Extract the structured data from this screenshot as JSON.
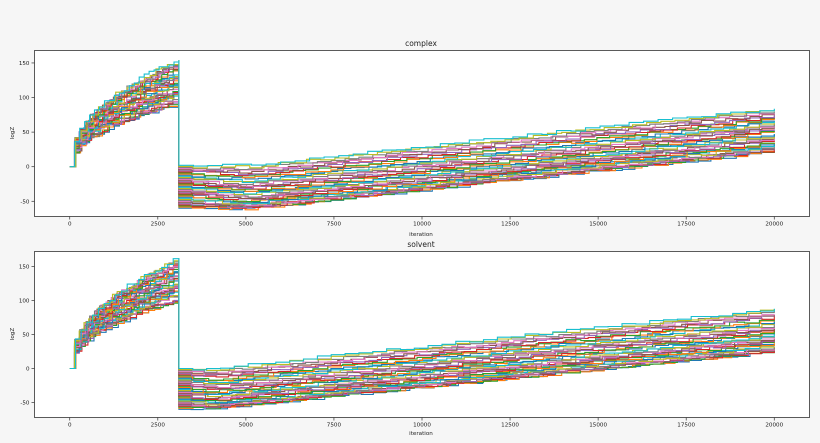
{
  "figure": {
    "background": "#f6f6f6",
    "plot_background": "#ffffff"
  },
  "chart_data": [
    {
      "type": "line",
      "title": "complex",
      "xlabel": "iteration",
      "ylabel": "logZ",
      "xlim": [
        -1000,
        21000
      ],
      "ylim": [
        -72,
        168
      ],
      "xticks": [
        0,
        2500,
        5000,
        7500,
        10000,
        12500,
        15000,
        17500,
        20000
      ],
      "yticks": [
        -50,
        0,
        50,
        100,
        150
      ],
      "grid": false,
      "legend": "none",
      "series_count": 40,
      "step_like": true,
      "phase1": {
        "x_end": 3100,
        "final_range": [
          88,
          155
        ]
      },
      "drop": {
        "x": 3100,
        "range": [
          -60,
          2
        ],
        "min_x": 5000,
        "min_value": -62
      },
      "end": {
        "x": 20000,
        "range": [
          22,
          85
        ]
      },
      "palette": [
        "#1f77b4",
        "#ff7f0e",
        "#2ca02c",
        "#d62728",
        "#9467bd",
        "#8c564b",
        "#e377c2",
        "#7f7f7f",
        "#bcbd22",
        "#17becf"
      ]
    },
    {
      "type": "line",
      "title": "solvent",
      "xlabel": "iteration",
      "ylabel": "logZ",
      "xlim": [
        -1000,
        21000
      ],
      "ylim": [
        -72,
        172
      ],
      "xticks": [
        0,
        2500,
        5000,
        7500,
        10000,
        12500,
        15000,
        17500,
        20000
      ],
      "yticks": [
        -50,
        0,
        50,
        100,
        150
      ],
      "grid": false,
      "legend": "none",
      "series_count": 40,
      "step_like": true,
      "phase1": {
        "x_end": 3100,
        "final_range": [
          98,
          162
        ]
      },
      "drop": {
        "x": 3100,
        "range": [
          -60,
          0
        ],
        "min_x": 4000,
        "min_value": -58
      },
      "end": {
        "x": 20000,
        "range": [
          25,
          88
        ]
      },
      "palette": [
        "#1f77b4",
        "#ff7f0e",
        "#2ca02c",
        "#d62728",
        "#9467bd",
        "#8c564b",
        "#e377c2",
        "#7f7f7f",
        "#bcbd22",
        "#17becf"
      ]
    }
  ]
}
